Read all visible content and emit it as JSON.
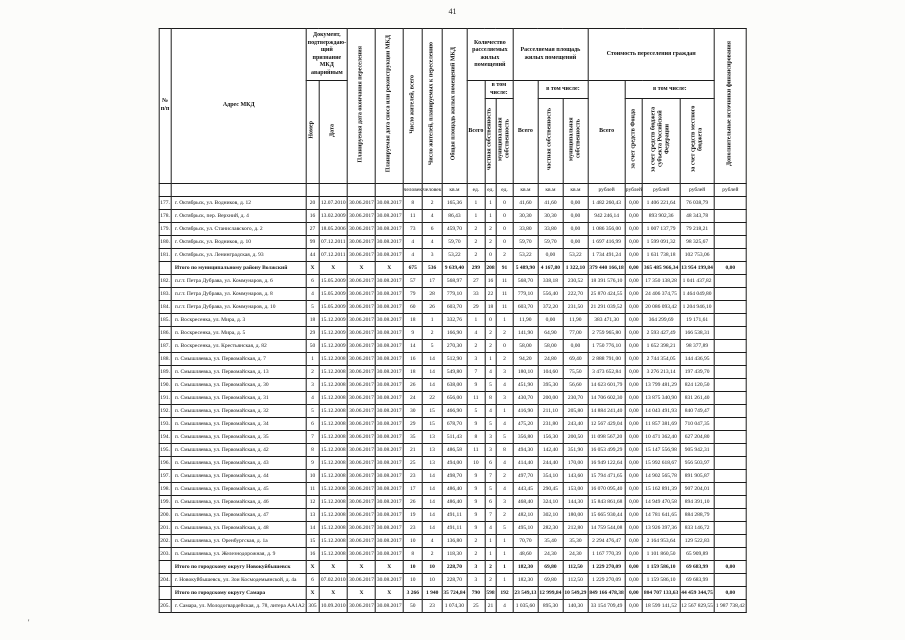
{
  "page": {
    "number": "41",
    "artifact_mark": "'"
  },
  "table": {
    "header": {
      "col_num": "№\nп/п",
      "col_address": "Адрес МКД",
      "group_doc": "Документ, подтверждаю-\nщий признание МКД аварийным",
      "col_doc_number": "Номер",
      "col_doc_date": "Дата",
      "col_resettle_date": "Планируемая дата окончания переселения",
      "col_demolition_date": "Планируемая дата сноса или реконструкции МКД",
      "col_residents_total": "Число жителей, всего",
      "col_residents_planned": "Число жителей, планируемых к переселению",
      "col_area_total": "Общая площадь жилых помещений МКД",
      "group_units": "Количество расселяемых жилых помещений",
      "group_area": "Расселяемая площадь жилых помещений",
      "group_cost": "Стоимость переселения граждан",
      "subheader_incl": "в том числе:",
      "col_total": "Всего",
      "col_private": "частная собственность",
      "col_municipal": "муниципальная собственность",
      "col_cost_fund": "за счет средств Фонда",
      "col_cost_region": "за счет средств бюджета субъекта Российской Федерации",
      "col_cost_local": "за счет средств местного бюджета",
      "col_extra": "Дополнительные источники финансирования",
      "units_row": [
        "человек",
        "человек",
        "кв.м",
        "ед.",
        "ед.",
        "ед.",
        "кв.м",
        "кв.м",
        "кв.м",
        "рублей",
        "рублей",
        "рублей",
        "рублей",
        "рублей"
      ]
    },
    "rows": [
      {
        "total": false,
        "cells": [
          "177.",
          "г. Октябрьск, ул. Водников, д. 12",
          "20",
          "12.07.2010",
          "30.06.2017",
          "30.08.2017",
          "8",
          "2",
          "165,36",
          "1",
          "1",
          "0",
          "41,60",
          "41,60",
          "0,00",
          "1 482 260,43",
          "0,00",
          "1 406 221,64",
          "76 038,79",
          ""
        ]
      },
      {
        "total": false,
        "cells": [
          "178.",
          "г. Октябрьск, пер. Верхний, д. 4",
          "16",
          "13.02.2009",
          "30.06.2017",
          "30.08.2017",
          "11",
          "4",
          "86,43",
          "1",
          "1",
          "0",
          "30,30",
          "30,30",
          "0,00",
          "942 246,14",
          "0,00",
          "893 902,36",
          "48 343,78",
          ""
        ]
      },
      {
        "total": false,
        "cells": [
          "179.",
          "г. Октябрьск, ул. Станиславского, д. 2",
          "27",
          "18.05.2006",
          "30.06.2017",
          "30.08.2017",
          "73",
          "6",
          "459,70",
          "2",
          "2",
          "0",
          "33,80",
          "33,80",
          "0,00",
          "1 086 356,00",
          "0,00",
          "1 007 137,79",
          "79 218,21",
          ""
        ]
      },
      {
        "total": false,
        "cells": [
          "180.",
          "г. Октябрьск, ул. Водников, д. 10",
          "99",
          "07.12.2011",
          "30.06.2017",
          "30.08.2017",
          "4",
          "4",
          "59,70",
          "2",
          "2",
          "0",
          "59,70",
          "59,70",
          "0,00",
          "1 697 416,99",
          "0,00",
          "1 599 091,32",
          "98 325,67",
          ""
        ]
      },
      {
        "total": false,
        "cells": [
          "181.",
          "г. Октябрьск, ул. Ленинградская, д. 93",
          "44",
          "07.12.2011",
          "30.06.2017",
          "30.08.2017",
          "4",
          "3",
          "53,22",
          "2",
          "0",
          "2",
          "53,22",
          "0,00",
          "53,22",
          "1 734 491,24",
          "0,00",
          "1 631 738,18",
          "102 753,06",
          ""
        ]
      },
      {
        "total": true,
        "cells": [
          "",
          "Итого по муниципальному району Волжский",
          "X",
          "X",
          "X",
          "X",
          "675",
          "536",
          "9 639,40",
          "299",
          "208",
          "91",
          "5 489,90",
          "4 167,80",
          "1 322,10",
          "379 440 166,18",
          "0,00",
          "365 485 966,34",
          "13 954 199,84",
          "0,00"
        ]
      },
      {
        "total": false,
        "cells": [
          "182.",
          "п.г.т. Петра Дубрава, ул. Коммунаров, д. 6",
          "6",
          "15.05.2009",
          "30.06.2017",
          "30.08.2017",
          "57",
          "17",
          "568,97",
          "27",
          "16",
          "11",
          "568,70",
          "338,18",
          "230,52",
          "18 391 576,10",
          "0,00",
          "17 350 138,28",
          "1 041 437,82",
          ""
        ]
      },
      {
        "total": false,
        "cells": [
          "183.",
          "п.г.т. Петра Дубрава, ул. Коммунаров, д. 8",
          "4",
          "15.05.2009",
          "30.06.2017",
          "30.08.2017",
          "79",
          "28",
          "779,10",
          "33",
          "22",
          "11",
          "779,10",
          "556,40",
          "222,70",
          "25 870 424,55",
          "0,00",
          "24 406 374,75",
          "1 464 049,80",
          ""
        ]
      },
      {
        "total": false,
        "cells": [
          "184.",
          "п.г.т. Петра Дубрава, ул. Коммунаров, д. 10",
          "5",
          "15.05.2009",
          "30.06.2017",
          "30.08.2017",
          "60",
          "26",
          "603,70",
          "29",
          "18",
          "11",
          "603,70",
          "372,20",
          "231,50",
          "21 291 039,52",
          "0,00",
          "20 086 093,42",
          "1 204 946,10",
          ""
        ]
      },
      {
        "total": false,
        "cells": [
          "185.",
          "п. Воскресенка, ул. Мира, д. 3",
          "18",
          "15.12.2009",
          "30.06.2017",
          "30.08.2017",
          "18",
          "1",
          "332,76",
          "1",
          "0",
          "1",
          "11,90",
          "0,00",
          "11,90",
          "383 471,30",
          "0,00",
          "364 299,69",
          "19 171,61",
          ""
        ]
      },
      {
        "total": false,
        "cells": [
          "186.",
          "п. Воскресенка, ул. Мира, д. 5",
          "29",
          "15.12.2009",
          "30.06.2017",
          "30.08.2017",
          "9",
          "2",
          "166,90",
          "4",
          "2",
          "2",
          "141,90",
          "64,90",
          "77,00",
          "2 759 965,80",
          "0,00",
          "2 593 427,49",
          "166 538,31",
          ""
        ]
      },
      {
        "total": false,
        "cells": [
          "187.",
          "п. Воскресенка, ул. Крестьянская, д. 82",
          "50",
          "15.12.2009",
          "30.06.2017",
          "30.08.2017",
          "14",
          "5",
          "270,30",
          "2",
          "2",
          "0",
          "58,00",
          "58,00",
          "0,00",
          "1 750 776,10",
          "0,00",
          "1 652 398,21",
          "98 377,89",
          ""
        ]
      },
      {
        "total": false,
        "cells": [
          "188.",
          "п. Смышляевка, ул. Первомайская, д. 7",
          "1",
          "15.12.2008",
          "30.06.2017",
          "30.08.2017",
          "16",
          "14",
          "512,90",
          "3",
          "1",
          "2",
          "94,20",
          "24,80",
          "69,40",
          "2 888 791,00",
          "0,00",
          "2 744 354,05",
          "144 436,95",
          ""
        ]
      },
      {
        "total": false,
        "cells": [
          "189.",
          "п. Смышляевка, ул. Первомайская, д. 13",
          "2",
          "15.12.2008",
          "30.06.2017",
          "30.08.2017",
          "18",
          "14",
          "549,80",
          "7",
          "4",
          "3",
          "180,10",
          "104,60",
          "75,50",
          "3 473 652,84",
          "0,00",
          "3 276 213,14",
          "197 439,70",
          ""
        ]
      },
      {
        "total": false,
        "cells": [
          "190.",
          "п. Смышляевка, ул. Первомайская, д. 30",
          "3",
          "15.12.2008",
          "30.06.2017",
          "30.08.2017",
          "26",
          "14",
          "638,00",
          "9",
          "5",
          "4",
          "451,90",
          "395,30",
          "56,60",
          "14 623 601,79",
          "0,00",
          "13 799 481,29",
          "824 120,50",
          ""
        ]
      },
      {
        "total": false,
        "cells": [
          "191.",
          "п. Смышляевка, ул. Первомайская, д. 31",
          "4",
          "15.12.2008",
          "30.06.2017",
          "30.08.2017",
          "24",
          "22",
          "656,00",
          "11",
          "8",
          "3",
          "430,70",
          "200,00",
          "230,70",
          "14 706 602,30",
          "0,00",
          "13 875 340,90",
          "831 261,40",
          ""
        ]
      },
      {
        "total": false,
        "cells": [
          "192.",
          "п. Смышляевка, ул. Первомайская, д. 32",
          "5",
          "15.12.2008",
          "30.06.2017",
          "30.08.2017",
          "30",
          "15",
          "466,90",
          "5",
          "4",
          "1",
          "416,90",
          "211,10",
          "205,80",
          "14 884 241,40",
          "0,00",
          "14 043 491,93",
          "840 749,47",
          ""
        ]
      },
      {
        "total": false,
        "cells": [
          "193.",
          "п. Смышляевка, ул. Первомайская, д. 34",
          "6",
          "15.12.2008",
          "30.06.2017",
          "30.08.2017",
          "29",
          "15",
          "678,70",
          "9",
          "5",
          "4",
          "475,20",
          "231,80",
          "243,40",
          "12 567 429,04",
          "0,00",
          "11 857 381,69",
          "710 047,35",
          ""
        ]
      },
      {
        "total": false,
        "cells": [
          "194.",
          "п. Смышляевка, ул. Первомайская, д. 35",
          "7",
          "15.12.2008",
          "30.06.2017",
          "30.08.2017",
          "35",
          "13",
          "511,43",
          "8",
          "3",
          "5",
          "356,80",
          "156,30",
          "200,50",
          "11 098 567,20",
          "0,00",
          "10 471 362,40",
          "627 204,80",
          ""
        ]
      },
      {
        "total": false,
        "cells": [
          "195.",
          "п. Смышляевка, ул. Первомайская, д. 42",
          "8",
          "15.12.2008",
          "30.06.2017",
          "30.08.2017",
          "21",
          "13",
          "486,58",
          "11",
          "3",
          "8",
          "494,30",
          "142,40",
          "351,90",
          "16 053 499,29",
          "0,00",
          "15 147 556,98",
          "905 942,31",
          ""
        ]
      },
      {
        "total": false,
        "cells": [
          "196.",
          "п. Смышляевка, ул. Первомайская, д. 43",
          "9",
          "15.12.2008",
          "30.06.2017",
          "30.08.2017",
          "25",
          "13",
          "494,00",
          "10",
          "6",
          "4",
          "414,40",
          "244,40",
          "170,00",
          "16 949 122,64",
          "0,00",
          "15 992 618,67",
          "956 503,97",
          ""
        ]
      },
      {
        "total": false,
        "cells": [
          "197.",
          "п. Смышляевка, ул. Первомайская, д. 44",
          "10",
          "15.12.2008",
          "30.06.2017",
          "30.08.2017",
          "23",
          "14",
          "498,70",
          "9",
          "7",
          "2",
          "497,70",
          "354,10",
          "143,60",
          "15 794 471,65",
          "0,00",
          "14 902 565,78",
          "891 905,87",
          ""
        ]
      },
      {
        "total": false,
        "cells": [
          "198.",
          "п. Смышляевка, ул. Первомайская, д. 45",
          "11",
          "15.12.2008",
          "30.06.2017",
          "30.08.2017",
          "17",
          "14",
          "486,40",
          "9",
          "5",
          "4",
          "443,45",
          "290,45",
          "153,00",
          "16 070 095,40",
          "0,00",
          "15 162 891,39",
          "907 204,01",
          ""
        ]
      },
      {
        "total": false,
        "cells": [
          "199.",
          "п. Смышляевка, ул. Первомайская, д. 46",
          "12",
          "15.12.2008",
          "30.06.2017",
          "30.08.2017",
          "26",
          "14",
          "486,40",
          "9",
          "6",
          "3",
          "468,40",
          "324,10",
          "144,30",
          "15 843 861,68",
          "0,00",
          "14 949 470,58",
          "894 391,10",
          ""
        ]
      },
      {
        "total": false,
        "cells": [
          "200.",
          "п. Смышляевка, ул. Первомайская, д. 47",
          "13",
          "15.12.2008",
          "30.06.2017",
          "30.08.2017",
          "19",
          "14",
          "491,11",
          "9",
          "7",
          "2",
          "482,10",
          "302,10",
          "180,00",
          "15 665 930,44",
          "0,00",
          "14 781 641,65",
          "884 288,79",
          ""
        ]
      },
      {
        "total": false,
        "cells": [
          "201.",
          "п. Смышляевка, ул. Первомайская, д. 48",
          "14",
          "15.12.2008",
          "30.06.2017",
          "30.08.2017",
          "23",
          "14",
          "491,11",
          "9",
          "4",
          "5",
          "495,10",
          "282,30",
          "212,80",
          "14 759 544,08",
          "0,00",
          "13 926 397,36",
          "833 146,72",
          ""
        ]
      },
      {
        "total": false,
        "cells": [
          "202.",
          "п. Смышляевка, ул. Оренбургская, д. 1а",
          "15",
          "15.12.2008",
          "30.06.2017",
          "30.08.2017",
          "10",
          "4",
          "136,80",
          "2",
          "1",
          "1",
          "70,70",
          "35,40",
          "35,30",
          "2 294 476,47",
          "0,00",
          "2 164 953,64",
          "129 522,83",
          ""
        ]
      },
      {
        "total": false,
        "cells": [
          "203.",
          "п. Смышляевка, ул. Железнодорожная, д. 9",
          "16",
          "15.12.2008",
          "30.06.2017",
          "30.08.2017",
          "8",
          "2",
          "118,30",
          "2",
          "1",
          "1",
          "48,60",
          "24,30",
          "24,30",
          "1 167 770,39",
          "0,00",
          "1 101 860,50",
          "65 909,89",
          ""
        ]
      },
      {
        "total": true,
        "cells": [
          "",
          "Итого по городскому округу Новокуйбышевск",
          "X",
          "X",
          "X",
          "X",
          "10",
          "10",
          "228,70",
          "3",
          "2",
          "1",
          "182,30",
          "69,80",
          "112,50",
          "1 229 270,09",
          "0,00",
          "1 159 586,10",
          "69 683,99",
          "0,00"
        ]
      },
      {
        "total": false,
        "cells": [
          "204.",
          "г. Новокуйбышевск, ул. Зои Космодемьянской, д. 4а",
          "6",
          "07.02.2010",
          "30.06.2017",
          "30.08.2017",
          "10",
          "10",
          "228,70",
          "3",
          "2",
          "1",
          "182,30",
          "69,80",
          "112,50",
          "1 229 270,09",
          "0,00",
          "1 159 586,10",
          "69 683,99",
          ""
        ]
      },
      {
        "total": true,
        "cells": [
          "",
          "Итого по городскому округу Самара",
          "X",
          "X",
          "X",
          "X",
          "3 266",
          "1 940",
          "35 724,84",
          "790",
          "598",
          "192",
          "23 549,13",
          "12 999,84",
          "10 549,29",
          "849 166 478,38",
          "0,00",
          "804 707 133,63",
          "44 459 344,75",
          "0,00"
        ]
      },
      {
        "total": false,
        "cells": [
          "205.",
          "г. Самара, ул. Молодогвардейская, д. 78, литера АА1А2",
          "305",
          "10.09.2010",
          "30.06.2017",
          "30.08.2017",
          "50",
          "23",
          "1 074,30",
          "25",
          "21",
          "4",
          "1 035,60",
          "895,30",
          "140,30",
          "33 154 709,49",
          "0,00",
          "18 599 141,52",
          "12 567 829,55",
          "1 987 738,42"
        ]
      }
    ]
  }
}
